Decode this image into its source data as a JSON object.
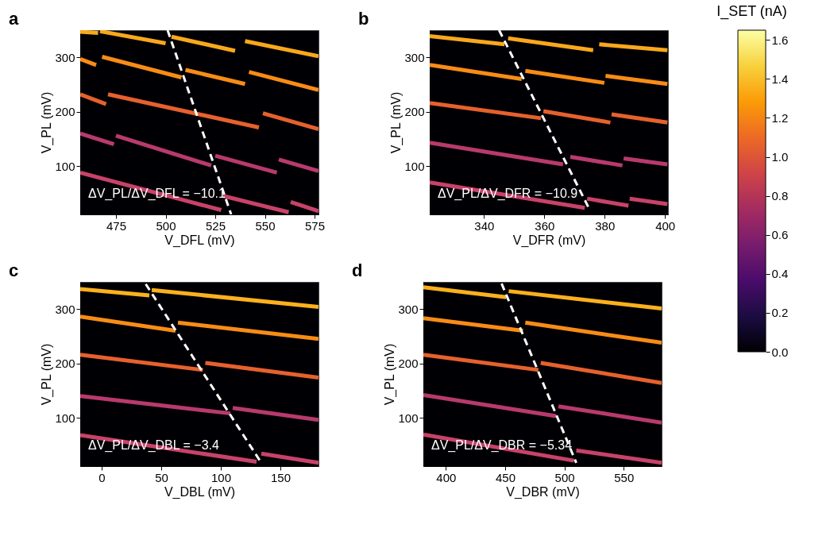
{
  "chart_data": [
    {
      "type": "line",
      "title": "a",
      "clabel": "I_SET (nA)",
      "clim": [
        0,
        1.65
      ],
      "cticks": [
        {
          "value": 0,
          "label": "0.0"
        },
        {
          "value": 0.2,
          "label": "0.2"
        },
        {
          "value": 0.4,
          "label": "0.4"
        },
        {
          "value": 0.6,
          "label": "0.6"
        },
        {
          "value": 0.8,
          "label": "0.8"
        },
        {
          "value": 1.0,
          "label": "1.0"
        },
        {
          "value": 1.2,
          "label": "1.2"
        },
        {
          "value": 1.4,
          "label": "1.4"
        },
        {
          "value": 1.6,
          "label": "1.6"
        }
      ],
      "xlabel": "V_DFL (mV)",
      "ylabel": "V_PL (mV)",
      "xlim": [
        457,
        577
      ],
      "ylim": [
        11,
        350
      ],
      "xticks": [
        475,
        500,
        525,
        550,
        575
      ],
      "yticks": [
        100,
        200,
        300
      ],
      "marker": "none",
      "annotations": [
        "ΔV_PL/ΔV_DFL = −10.1"
      ],
      "series": [
        {
          "color": "#f9a81c",
          "x": [
            457,
            466,
            466.5,
            467,
            500,
            501,
            503,
            535,
            537.5,
            540,
            577
          ],
          "values": [
            347,
            345,
            null,
            348,
            326,
            null,
            338,
            312,
            null,
            330,
            302
          ]
        },
        {
          "color": "#f88c16",
          "x": [
            457,
            465,
            466.5,
            468,
            508,
            509,
            510,
            540,
            541,
            542,
            577
          ],
          "values": [
            297,
            286,
            null,
            301,
            263,
            null,
            277,
            251,
            null,
            273,
            240
          ]
        },
        {
          "color": "#e6612d",
          "x": [
            457,
            470,
            470.5,
            471,
            547,
            548,
            549,
            577
          ],
          "values": [
            232,
            214,
            null,
            232,
            171,
            null,
            197,
            168
          ]
        },
        {
          "color": "#b83a6e",
          "x": [
            457,
            474,
            474.5,
            475,
            523,
            524,
            525,
            556,
            556.5,
            557,
            577
          ],
          "values": [
            160,
            140,
            null,
            156,
            101,
            null,
            119,
            88,
            null,
            112,
            91
          ]
        },
        {
          "color": "#c8426a",
          "x": [
            457,
            528,
            528.5,
            529,
            562,
            562.5,
            563,
            577
          ],
          "values": [
            88,
            19,
            null,
            45,
            15,
            null,
            34,
            17
          ]
        },
        {
          "color": "#ffffff",
          "line_style": "dashed",
          "x": [
            501,
            533
          ],
          "values": [
            350,
            11
          ]
        }
      ]
    },
    {
      "type": "line",
      "title": "b",
      "xlabel": "V_DFR (mV)",
      "ylabel": "V_PL (mV)",
      "xlim": [
        322,
        401
      ],
      "ylim": [
        11,
        350
      ],
      "xticks": [
        340,
        360,
        380,
        400
      ],
      "yticks": [
        100,
        200,
        300
      ],
      "marker": "none",
      "annotations": [
        "ΔV_PL/ΔV_DFR = −10.9"
      ],
      "series": [
        {
          "color": "#f9a81c",
          "x": [
            322,
            346.8,
            347.4,
            348,
            376.2,
            377.2,
            378.2,
            400.8
          ],
          "values": [
            339,
            324,
            null,
            335,
            313,
            null,
            324,
            313
          ]
        },
        {
          "color": "#f88c16",
          "x": [
            322,
            352.5,
            353.1,
            353.7,
            379.9,
            380.1,
            380.3,
            400.8
          ],
          "values": [
            286,
            260,
            null,
            275,
            253,
            null,
            266,
            251
          ]
        },
        {
          "color": "#e6612d",
          "x": [
            322,
            358.9,
            359.3,
            359.7,
            381.9,
            382.1,
            382.3,
            400.8
          ],
          "values": [
            216,
            188,
            null,
            201,
            180,
            null,
            195,
            180
          ]
        },
        {
          "color": "#b83a6e",
          "x": [
            322,
            366.2,
            367.4,
            368.6,
            385.9,
            386.1,
            386.3,
            400.8
          ],
          "values": [
            143,
            103,
            null,
            117,
            101,
            null,
            114,
            103
          ]
        },
        {
          "color": "#c8426a",
          "x": [
            322,
            373.4,
            373.8,
            374.2,
            387.9,
            388.1,
            388.3,
            400.8
          ],
          "values": [
            70,
            23,
            null,
            40,
            27,
            null,
            40,
            30
          ]
        },
        {
          "color": "#ffffff",
          "line_style": "dashed",
          "x": [
            345,
            375
          ],
          "values": [
            350,
            20
          ]
        }
      ]
    },
    {
      "type": "line",
      "title": "c",
      "xlabel": "V_DBL (mV)",
      "ylabel": "V_PL (mV)",
      "xlim": [
        -18,
        182
      ],
      "ylim": [
        11,
        350
      ],
      "xticks": [
        0,
        50,
        100,
        150
      ],
      "yticks": [
        100,
        200,
        300
      ],
      "marker": "none",
      "annotations": [
        "ΔV_PL/ΔV_DBL = −3.4"
      ],
      "series": [
        {
          "color": "#fbb11d",
          "x": [
            -18,
            40,
            41,
            42,
            182
          ],
          "values": [
            337,
            325,
            null,
            335,
            304
          ]
        },
        {
          "color": "#f88c16",
          "x": [
            -18,
            62,
            63,
            64,
            182
          ],
          "values": [
            286,
            260,
            null,
            275,
            245
          ]
        },
        {
          "color": "#e6612d",
          "x": [
            -18,
            85,
            86,
            87,
            182
          ],
          "values": [
            216,
            188,
            null,
            201,
            174
          ]
        },
        {
          "color": "#b83a6e",
          "x": [
            -18,
            108,
            109,
            110,
            182
          ],
          "values": [
            140,
            108,
            null,
            118,
            96
          ]
        },
        {
          "color": "#c8426a",
          "x": [
            -18,
            130,
            132,
            134,
            182
          ],
          "values": [
            68,
            19,
            null,
            34,
            17
          ]
        },
        {
          "color": "#ffffff",
          "line_style": "dashed",
          "x": [
            37,
            134
          ],
          "values": [
            346,
            17
          ]
        }
      ]
    },
    {
      "type": "line",
      "title": "d",
      "xlabel": "V_DBR (mV)",
      "ylabel": "V_PL (mV)",
      "xlim": [
        381,
        582
      ],
      "ylim": [
        11,
        350
      ],
      "xticks": [
        400,
        450,
        500,
        550
      ],
      "yticks": [
        100,
        200,
        300
      ],
      "marker": "none",
      "annotations": [
        "ΔV_PL/ΔV_DBR = −5.34"
      ],
      "series": [
        {
          "color": "#fbb11d",
          "x": [
            381,
            451,
            452,
            453,
            582
          ],
          "values": [
            340,
            322,
            null,
            333,
            301
          ]
        },
        {
          "color": "#f88c16",
          "x": [
            381,
            465,
            466,
            467,
            582
          ],
          "values": [
            283,
            260,
            null,
            275,
            238
          ]
        },
        {
          "color": "#e6612d",
          "x": [
            381,
            478,
            479,
            480,
            582
          ],
          "values": [
            216,
            188,
            null,
            201,
            164
          ]
        },
        {
          "color": "#b83a6e",
          "x": [
            381,
            493,
            494,
            495,
            582
          ],
          "values": [
            142,
            103,
            null,
            121,
            91
          ]
        },
        {
          "color": "#c8426a",
          "x": [
            381,
            508,
            509,
            510,
            582
          ],
          "values": [
            69,
            21,
            null,
            40,
            17
          ]
        },
        {
          "color": "#ffffff",
          "line_style": "dashed",
          "x": [
            447,
            510
          ],
          "values": [
            347,
            17
          ]
        }
      ]
    }
  ]
}
